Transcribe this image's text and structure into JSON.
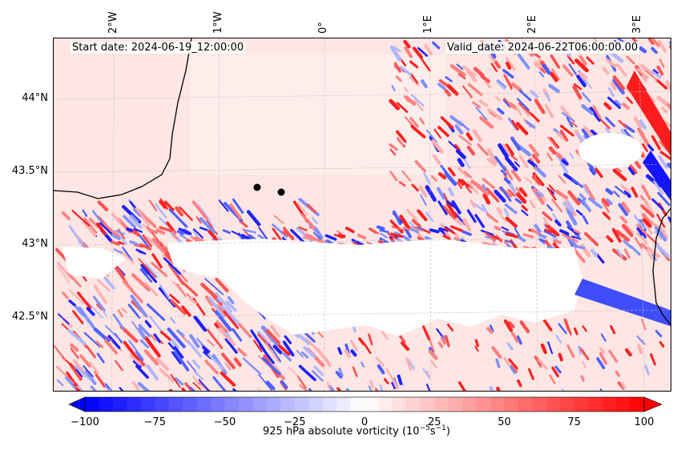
{
  "map": {
    "start_date_label": "Start date: 2024-06-19_12:00:00",
    "valid_date_label": "Valid_date: 2024-06-22T06:00:00.00",
    "latitude_labels": [
      "44°N",
      "43.5°N",
      "43°N",
      "42.5°N"
    ],
    "longitude_labels": [
      "2°W",
      "1°W",
      "0°",
      "1°E",
      "2°E",
      "3°E"
    ],
    "markers": [
      "station-1",
      "station-2"
    ]
  },
  "colorbar": {
    "title_prefix": "925 hPa absolute vorticity (10",
    "title_exp1": "−5",
    "title_mid": "s",
    "title_exp2": "−1",
    "title_suffix": ")",
    "min": -100,
    "max": 100,
    "ticks": [
      "−100",
      "−75",
      "−50",
      "−25",
      "0",
      "25",
      "50",
      "75",
      "100"
    ],
    "cmap": "bwr",
    "colors": {
      "negative": "#0000ff",
      "zero": "#ffffff",
      "positive": "#ff0000"
    }
  }
}
